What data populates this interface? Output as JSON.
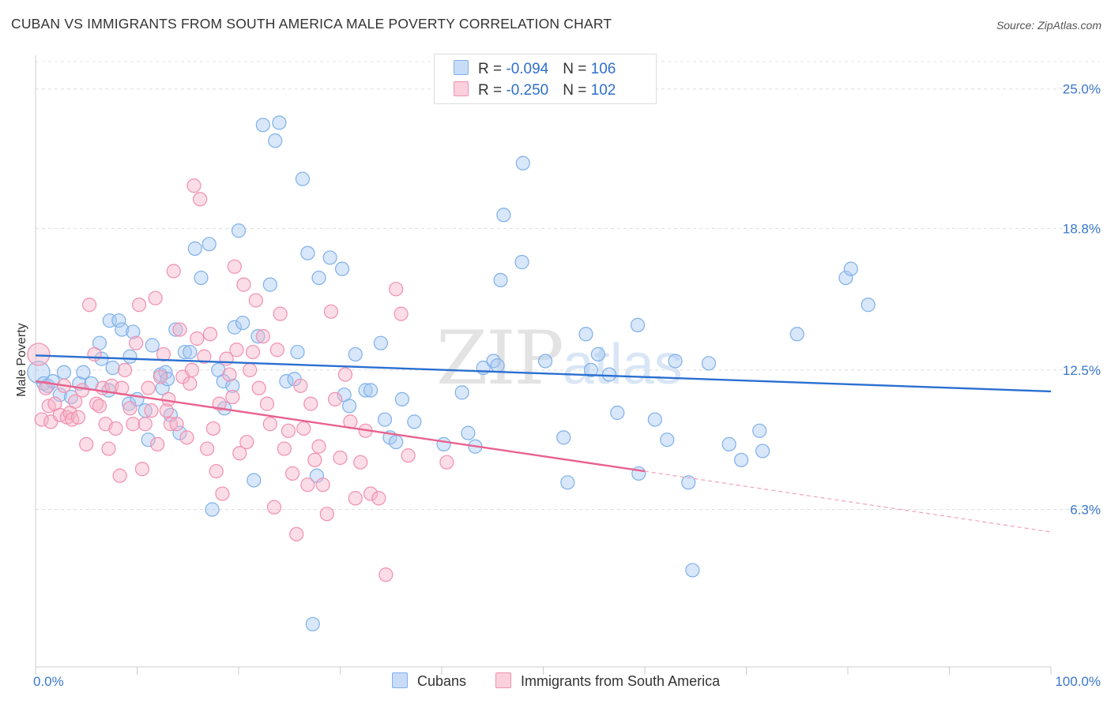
{
  "header": {
    "title": "CUBAN VS IMMIGRANTS FROM SOUTH AMERICA MALE POVERTY CORRELATION CHART",
    "source": "Source: ZipAtlas.com"
  },
  "watermark": {
    "zip": "ZIP",
    "atlas": "atlas"
  },
  "legend": {
    "rows": [
      {
        "r_label": "R = ",
        "r_value": "-0.094",
        "n_label": "N = ",
        "n_value": "106",
        "color": "#a9c9f2"
      },
      {
        "r_label": "R = ",
        "r_value": "-0.250",
        "n_label": "N = ",
        "n_value": "102",
        "color": "#f5b4c8"
      }
    ]
  },
  "bottom_legend": [
    {
      "label": "Cubans",
      "color": "#a9c9f2"
    },
    {
      "label": "Immigrants from South America",
      "color": "#f5b4c8"
    }
  ],
  "chart_data": {
    "type": "scatter",
    "title": "CUBAN VS IMMIGRANTS FROM SOUTH AMERICA MALE POVERTY CORRELATION CHART",
    "xlabel": "",
    "ylabel": "Male Poverty",
    "xlim": [
      0,
      100
    ],
    "ylim": [
      0,
      26.5
    ],
    "x_tick_labels": [
      "0.0%",
      "100.0%"
    ],
    "y_ticks": [
      6.3,
      12.5,
      18.8,
      25.0
    ],
    "y_tick_labels": [
      "6.3%",
      "12.5%",
      "18.8%",
      "25.0%"
    ],
    "grid": "horizontal dashed",
    "legend_position": "top-center",
    "series": [
      {
        "name": "Cubans",
        "color": "#7fb0ea",
        "trend": {
          "x": [
            0,
            100
          ],
          "y": [
            13.15,
            11.55
          ],
          "style": "solid"
        },
        "points": [
          [
            0.3,
            12.4
          ],
          [
            0.8,
            11.9
          ],
          [
            1.2,
            11.8
          ],
          [
            1.7,
            12.0
          ],
          [
            2.4,
            11.4
          ],
          [
            2.8,
            12.4
          ],
          [
            3.5,
            11.3
          ],
          [
            4.3,
            11.9
          ],
          [
            4.7,
            12.4
          ],
          [
            5.5,
            11.9
          ],
          [
            6.3,
            13.7
          ],
          [
            6.5,
            13.0
          ],
          [
            7.2,
            11.6
          ],
          [
            7.3,
            14.7
          ],
          [
            7.6,
            12.6
          ],
          [
            8.2,
            14.7
          ],
          [
            8.5,
            14.3
          ],
          [
            9.3,
            13.1
          ],
          [
            9.6,
            14.2
          ],
          [
            9.2,
            11.0
          ],
          [
            10.0,
            11.2
          ],
          [
            10.8,
            10.7
          ],
          [
            11.1,
            9.4
          ],
          [
            11.5,
            13.6
          ],
          [
            12.3,
            12.3
          ],
          [
            12.5,
            11.7
          ],
          [
            12.8,
            12.4
          ],
          [
            13.0,
            12.1
          ],
          [
            13.3,
            10.5
          ],
          [
            13.8,
            14.3
          ],
          [
            14.2,
            9.7
          ],
          [
            14.7,
            13.3
          ],
          [
            15.2,
            13.3
          ],
          [
            15.7,
            17.9
          ],
          [
            16.3,
            16.6
          ],
          [
            17.1,
            18.1
          ],
          [
            17.4,
            6.3
          ],
          [
            18.0,
            12.5
          ],
          [
            18.5,
            12.0
          ],
          [
            18.6,
            10.8
          ],
          [
            19.4,
            11.8
          ],
          [
            19.6,
            14.4
          ],
          [
            20.0,
            18.7
          ],
          [
            20.4,
            14.6
          ],
          [
            21.5,
            7.6
          ],
          [
            21.9,
            14.0
          ],
          [
            22.4,
            23.4
          ],
          [
            23.1,
            16.3
          ],
          [
            23.6,
            22.7
          ],
          [
            24.0,
            23.5
          ],
          [
            24.7,
            12.0
          ],
          [
            25.5,
            12.1
          ],
          [
            25.8,
            13.3
          ],
          [
            26.3,
            21.0
          ],
          [
            26.8,
            17.7
          ],
          [
            27.3,
            1.2
          ],
          [
            27.7,
            7.8
          ],
          [
            27.9,
            16.6
          ],
          [
            29.0,
            17.5
          ],
          [
            30.2,
            17.0
          ],
          [
            30.4,
            11.4
          ],
          [
            30.9,
            10.9
          ],
          [
            31.5,
            13.2
          ],
          [
            32.5,
            11.6
          ],
          [
            33.0,
            11.6
          ],
          [
            34.0,
            13.7
          ],
          [
            34.4,
            10.3
          ],
          [
            34.9,
            9.5
          ],
          [
            35.5,
            9.3
          ],
          [
            36.1,
            11.2
          ],
          [
            37.3,
            10.2
          ],
          [
            40.2,
            9.2
          ],
          [
            42.0,
            11.5
          ],
          [
            42.6,
            9.7
          ],
          [
            43.3,
            9.1
          ],
          [
            44.1,
            12.6
          ],
          [
            45.1,
            12.9
          ],
          [
            45.5,
            12.7
          ],
          [
            45.8,
            16.5
          ],
          [
            46.1,
            19.4
          ],
          [
            47.9,
            17.3
          ],
          [
            48.0,
            21.7
          ],
          [
            50.2,
            12.9
          ],
          [
            52.0,
            9.5
          ],
          [
            52.4,
            7.5
          ],
          [
            54.2,
            14.1
          ],
          [
            54.7,
            12.5
          ],
          [
            55.4,
            13.2
          ],
          [
            56.5,
            12.3
          ],
          [
            57.3,
            10.6
          ],
          [
            59.3,
            14.5
          ],
          [
            59.4,
            7.9
          ],
          [
            61.0,
            10.3
          ],
          [
            62.2,
            9.4
          ],
          [
            63.0,
            12.9
          ],
          [
            64.3,
            7.5
          ],
          [
            64.7,
            3.6
          ],
          [
            66.3,
            12.8
          ],
          [
            68.3,
            9.2
          ],
          [
            69.5,
            8.5
          ],
          [
            71.3,
            9.8
          ],
          [
            71.6,
            8.9
          ],
          [
            75.0,
            14.1
          ],
          [
            79.8,
            16.6
          ],
          [
            80.3,
            17.0
          ],
          [
            82.0,
            15.4
          ]
        ]
      },
      {
        "name": "Immigrants from South America",
        "color": "#f28fb0",
        "trend": {
          "x": [
            0,
            60
          ],
          "y": [
            12.0,
            8.0
          ],
          "style": "solid",
          "extension": {
            "x": [
              60,
              100
            ],
            "y": [
              8.0,
              5.3
            ],
            "style": "dashed"
          }
        },
        "points": [
          [
            0.3,
            13.2
          ],
          [
            0.6,
            10.3
          ],
          [
            1.0,
            11.7
          ],
          [
            1.3,
            10.9
          ],
          [
            1.5,
            10.2
          ],
          [
            1.9,
            11.0
          ],
          [
            2.4,
            10.5
          ],
          [
            2.8,
            11.8
          ],
          [
            3.1,
            10.4
          ],
          [
            3.4,
            10.6
          ],
          [
            3.6,
            10.3
          ],
          [
            3.9,
            11.1
          ],
          [
            4.2,
            10.4
          ],
          [
            4.6,
            11.6
          ],
          [
            5.0,
            9.2
          ],
          [
            5.3,
            15.4
          ],
          [
            5.8,
            13.2
          ],
          [
            6.0,
            11.0
          ],
          [
            6.3,
            10.9
          ],
          [
            6.6,
            11.7
          ],
          [
            6.9,
            10.1
          ],
          [
            7.2,
            9.0
          ],
          [
            7.5,
            11.8
          ],
          [
            7.9,
            9.9
          ],
          [
            8.3,
            7.8
          ],
          [
            8.5,
            11.7
          ],
          [
            8.8,
            12.5
          ],
          [
            9.3,
            10.8
          ],
          [
            9.6,
            10.1
          ],
          [
            9.9,
            13.7
          ],
          [
            10.2,
            15.4
          ],
          [
            10.5,
            8.1
          ],
          [
            10.8,
            10.1
          ],
          [
            11.1,
            11.7
          ],
          [
            11.4,
            10.7
          ],
          [
            11.8,
            15.7
          ],
          [
            12.0,
            9.2
          ],
          [
            12.3,
            12.2
          ],
          [
            12.6,
            13.2
          ],
          [
            12.9,
            10.7
          ],
          [
            13.1,
            11.2
          ],
          [
            13.3,
            10.1
          ],
          [
            13.6,
            16.9
          ],
          [
            13.9,
            10.1
          ],
          [
            14.2,
            14.3
          ],
          [
            14.5,
            12.2
          ],
          [
            14.9,
            9.5
          ],
          [
            15.2,
            11.9
          ],
          [
            15.4,
            12.5
          ],
          [
            15.6,
            20.7
          ],
          [
            15.9,
            13.9
          ],
          [
            16.2,
            20.1
          ],
          [
            16.6,
            13.1
          ],
          [
            16.9,
            9.0
          ],
          [
            17.2,
            14.1
          ],
          [
            17.5,
            9.9
          ],
          [
            17.8,
            8.0
          ],
          [
            18.1,
            11.0
          ],
          [
            18.4,
            7.0
          ],
          [
            18.8,
            13.0
          ],
          [
            19.1,
            12.3
          ],
          [
            19.4,
            11.3
          ],
          [
            19.6,
            17.1
          ],
          [
            19.8,
            13.4
          ],
          [
            20.1,
            8.8
          ],
          [
            20.5,
            16.3
          ],
          [
            20.8,
            9.3
          ],
          [
            21.1,
            12.5
          ],
          [
            21.4,
            13.3
          ],
          [
            21.7,
            15.6
          ],
          [
            22.0,
            11.7
          ],
          [
            22.4,
            14.0
          ],
          [
            22.8,
            11.0
          ],
          [
            23.1,
            10.1
          ],
          [
            23.5,
            6.4
          ],
          [
            23.8,
            13.4
          ],
          [
            24.1,
            15.0
          ],
          [
            24.5,
            9.0
          ],
          [
            24.9,
            9.8
          ],
          [
            25.3,
            7.9
          ],
          [
            25.7,
            5.2
          ],
          [
            26.1,
            11.8
          ],
          [
            26.4,
            9.9
          ],
          [
            26.8,
            7.4
          ],
          [
            27.1,
            11.0
          ],
          [
            27.5,
            8.5
          ],
          [
            27.9,
            9.1
          ],
          [
            28.3,
            7.4
          ],
          [
            28.7,
            6.1
          ],
          [
            29.1,
            15.1
          ],
          [
            29.5,
            11.2
          ],
          [
            30.0,
            8.6
          ],
          [
            30.5,
            12.3
          ],
          [
            31.0,
            10.2
          ],
          [
            31.5,
            6.8
          ],
          [
            32.0,
            8.4
          ],
          [
            32.5,
            9.8
          ],
          [
            33.0,
            7.0
          ],
          [
            33.8,
            6.8
          ],
          [
            34.5,
            3.4
          ],
          [
            35.5,
            16.1
          ],
          [
            36.0,
            15.0
          ],
          [
            36.7,
            8.7
          ],
          [
            40.5,
            8.4
          ]
        ]
      }
    ]
  }
}
